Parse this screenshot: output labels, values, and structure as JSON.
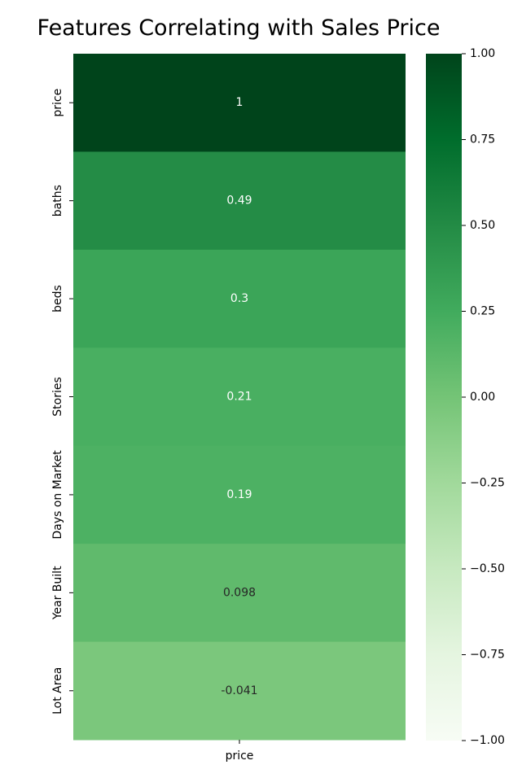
{
  "chart_data": {
    "type": "heatmap",
    "title": "Features Correlating with Sales Price",
    "columns": [
      "price"
    ],
    "rows": [
      "price",
      "baths",
      "beds",
      "Stories",
      "Days on Market",
      "Year Built",
      "Lot Area"
    ],
    "values": [
      1.0,
      0.49,
      0.3,
      0.21,
      0.19,
      0.098,
      -0.041
    ],
    "cell_labels": [
      "1",
      "0.49",
      "0.3",
      "0.21",
      "0.19",
      "0.098",
      "-0.041"
    ],
    "colorbar": {
      "range": [
        -1.0,
        1.0
      ],
      "ticks": [
        1.0,
        0.75,
        0.5,
        0.25,
        0.0,
        -0.25,
        -0.5,
        -0.75,
        -1.0
      ],
      "tick_labels": [
        "1.00",
        "0.75",
        "0.50",
        "0.25",
        "0.00",
        "−0.25",
        "−0.50",
        "−0.75",
        "−1.00"
      ],
      "colormap": "Greens"
    }
  }
}
